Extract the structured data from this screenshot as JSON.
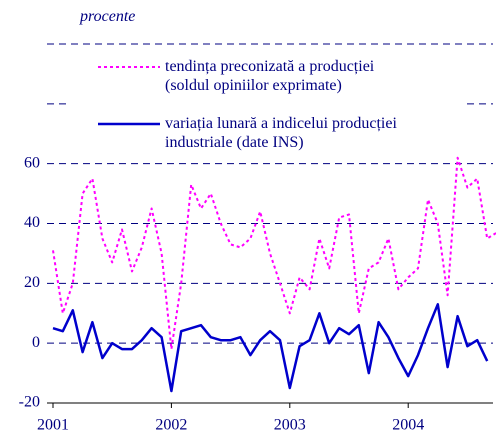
{
  "chart_data": {
    "type": "line",
    "y_unit_label": "procente",
    "x": [
      2001,
      2001.083,
      2001.167,
      2001.25,
      2001.333,
      2001.417,
      2001.5,
      2001.583,
      2001.667,
      2001.75,
      2001.833,
      2001.917,
      2002,
      2002.083,
      2002.167,
      2002.25,
      2002.333,
      2002.417,
      2002.5,
      2002.583,
      2002.667,
      2002.75,
      2002.833,
      2002.917,
      2003,
      2003.083,
      2003.167,
      2003.25,
      2003.333,
      2003.417,
      2003.5,
      2003.583,
      2003.667,
      2003.75,
      2003.833,
      2003.917,
      2004,
      2004.083,
      2004.167,
      2004.25,
      2004.333,
      2004.417,
      2004.5,
      2004.583,
      2004.667,
      2004.75
    ],
    "series": [
      {
        "name": "tendința preconizată a producției\n(soldul opiniilor exprimate)",
        "color": "#ff00ff",
        "style": "dotted",
        "values": [
          31,
          10,
          20,
          50,
          55,
          35,
          27,
          38,
          24,
          32,
          45,
          30,
          -2,
          20,
          53,
          45,
          50,
          40,
          33,
          32,
          35,
          44,
          30,
          20,
          10,
          22,
          18,
          35,
          25,
          42,
          43,
          10,
          25,
          27,
          35,
          18,
          22,
          25,
          48,
          40,
          16,
          62,
          52,
          55,
          35,
          37
        ]
      },
      {
        "name": "variația lunară a indicelui producției\nindustriale (date INS)",
        "color": "#0000cc",
        "style": "solid",
        "values": [
          5,
          4,
          11,
          -3,
          7,
          -5,
          0,
          -2,
          -2,
          1,
          5,
          2,
          -16,
          4,
          5,
          6,
          2,
          1,
          1,
          2,
          -4,
          1,
          4,
          1,
          -15,
          -1,
          1,
          10,
          0,
          5,
          3,
          6,
          -10,
          7,
          2,
          -5,
          -11,
          -4,
          5,
          13,
          -8,
          9,
          -1,
          1,
          -6,
          null
        ]
      }
    ],
    "xlim": [
      2001,
      2004.75
    ],
    "xticks": [
      2001,
      2002,
      2003,
      2004
    ],
    "ylim": [
      -20,
      100
    ],
    "yticks": [
      -20,
      0,
      20,
      40,
      60
    ],
    "grid_values": [
      0,
      20,
      40,
      60,
      80,
      100
    ],
    "grid": true
  }
}
